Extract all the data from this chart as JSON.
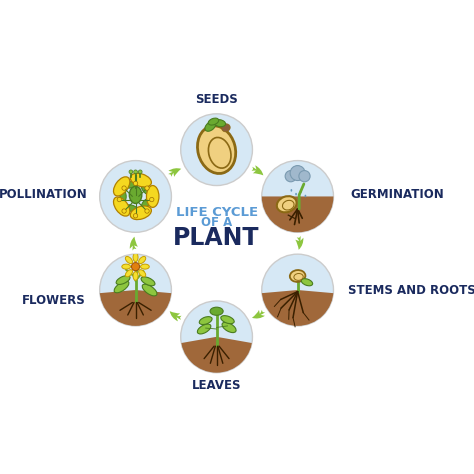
{
  "title_line1": "LIFE CYCLE",
  "title_line2": "OF A",
  "title_line3": "PLANT",
  "title_color1": "#5b9bd5",
  "title_color3": "#1a2a5e",
  "bg_color": "#ffffff",
  "arrow_color": "#8dc63f",
  "sky_color": "#d6e8f5",
  "soil_color": "#a0683a",
  "soil_light": "#c48a55",
  "green_light": "#8dc63f",
  "green_dark": "#4a7c20",
  "green_mid": "#6aaa30",
  "seed_fill": "#f0d080",
  "seed_outline": "#8B6914",
  "root_color": "#3a2000",
  "cloud_color": "#a0b8cc",
  "rain_color": "#6699bb",
  "label_color": "#1a2a5e",
  "circle_edge": "#cccccc",
  "font_size_label": 8.5,
  "font_size_title1": 9.5,
  "font_size_title2": 8.5,
  "font_size_title3": 17
}
